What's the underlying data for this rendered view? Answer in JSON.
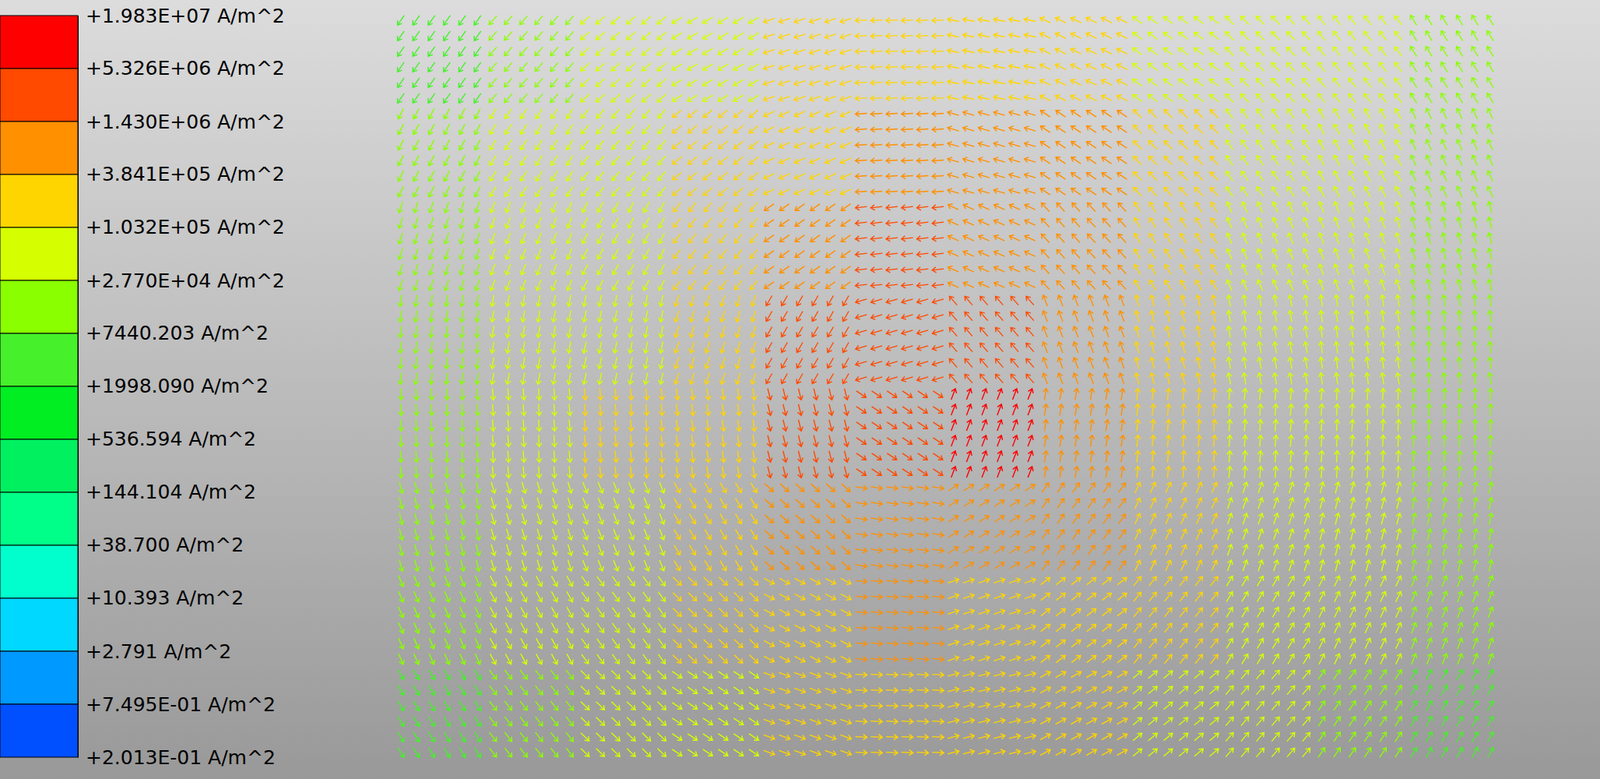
{
  "chart_data": {
    "type": "vector_field",
    "log": true,
    "tick_labels": false,
    "colorbar": {
      "range": [
        0.2013,
        19830000
      ],
      "ticks": [
        {
          "value": 19830000,
          "label": "+1.983E+07 A/m^2"
        },
        {
          "value": 5326000,
          "label": "+5.326E+06 A/m^2"
        },
        {
          "value": 1430000,
          "label": "+1.430E+06 A/m^2"
        },
        {
          "value": 384100,
          "label": "+3.841E+05 A/m^2"
        },
        {
          "value": 103200,
          "label": "+1.032E+05 A/m^2"
        },
        {
          "value": 27700,
          "label": "+2.770E+04 A/m^2"
        },
        {
          "value": 7440.203,
          "label": "+7440.203 A/m^2"
        },
        {
          "value": 1998.09,
          "label": "+1998.090 A/m^2"
        },
        {
          "value": 536.594,
          "label": "+536.594 A/m^2"
        },
        {
          "value": 144.104,
          "label": "+144.104 A/m^2"
        },
        {
          "value": 38.7,
          "label": "+38.700 A/m^2"
        },
        {
          "value": 10.393,
          "label": "+10.393 A/m^2"
        },
        {
          "value": 2.791,
          "label": "+2.791 A/m^2"
        },
        {
          "value": 0.7495,
          "label": "+7.495E-01 A/m^2"
        },
        {
          "value": 0.2013,
          "label": "+2.013E-01 A/m^2"
        }
      ],
      "colors": [
        "#ff0000",
        "#ff4a00",
        "#ff9000",
        "#ffd500",
        "#d5ff00",
        "#8aff00",
        "#46f02a",
        "#00ee22",
        "#00f060",
        "#00ff88",
        "#00ffcc",
        "#00d8ff",
        "#0099ff",
        "#0050ff"
      ]
    },
    "cells": [
      [
        6000,
        20000,
        40000,
        90000,
        150000,
        250000,
        250000,
        180000,
        100000,
        60000,
        30000,
        8000
      ],
      [
        15000,
        30000,
        60000,
        150000,
        300000,
        500000,
        600000,
        400000,
        150000,
        80000,
        40000,
        15000
      ],
      [
        20000,
        40000,
        90000,
        200000,
        800000,
        1500000,
        1200000,
        700000,
        200000,
        90000,
        50000,
        20000
      ],
      [
        25000,
        50000,
        100000,
        300000,
        2500000,
        3000000,
        4000000,
        900000,
        250000,
        100000,
        50000,
        20000
      ],
      [
        25000,
        50000,
        110000,
        300000,
        1500000,
        3000000,
        8000000,
        1000000,
        250000,
        100000,
        50000,
        18000
      ],
      [
        20000,
        50000,
        100000,
        250000,
        600000,
        1000000,
        900000,
        500000,
        200000,
        90000,
        40000,
        12000
      ],
      [
        15000,
        40000,
        90000,
        150000,
        300000,
        400000,
        350000,
        250000,
        150000,
        70000,
        30000,
        8000
      ],
      [
        6000,
        25000,
        60000,
        100000,
        150000,
        200000,
        180000,
        120000,
        80000,
        40000,
        20000,
        5000
      ]
    ],
    "angles": [
      [
        125,
        131,
        139,
        149,
        162,
        177,
        -168,
        -154,
        -143,
        -134,
        -128,
        -122
      ],
      [
        117,
        123,
        130,
        141,
        156,
        176,
        -164,
        -146,
        -134,
        -125,
        -119,
        -115
      ],
      [
        108,
        112,
        118,
        128,
        145,
        173,
        -155,
        -133,
        -121,
        -114,
        -110,
        -106
      ],
      [
        98,
        100,
        102,
        108,
        120,
        164,
        -131,
        -111,
        -104,
        -100,
        -98,
        -97
      ],
      [
        87,
        86,
        85,
        82,
        76,
        34,
        -69,
        -81,
        -84,
        -85,
        -86,
        -87
      ],
      [
        76,
        73,
        68,
        59,
        43,
        9,
        -32,
        -54,
        -65,
        -71,
        -75,
        -77
      ],
      [
        66,
        61,
        54,
        44,
        28,
        5,
        -19,
        -38,
        -51,
        -59,
        -64,
        -68
      ],
      [
        58,
        52,
        44,
        34,
        20,
        3,
        -14,
        -29,
        -40,
        -49,
        -56,
        -60
      ]
    ]
  }
}
